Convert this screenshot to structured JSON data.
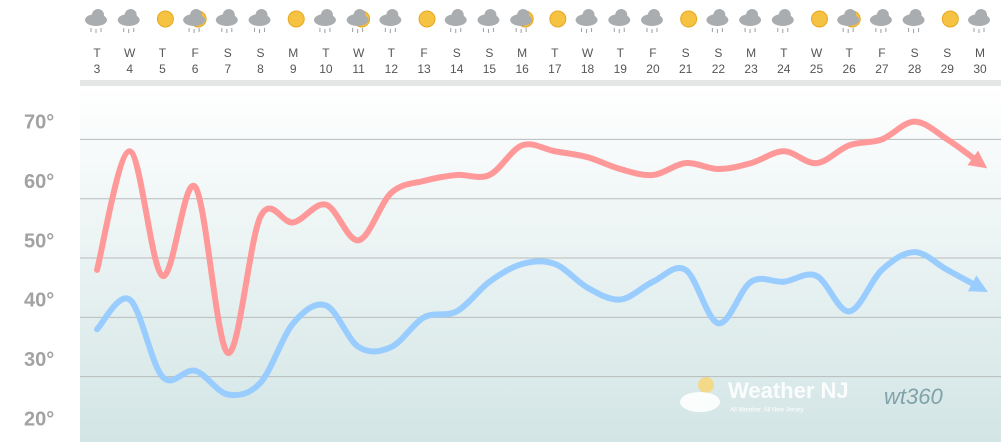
{
  "chart_data": {
    "type": "line",
    "categories": [
      "T",
      "W",
      "T",
      "F",
      "S",
      "S",
      "M",
      "T",
      "W",
      "T",
      "F",
      "S",
      "S",
      "M",
      "T",
      "W",
      "T",
      "F",
      "S",
      "S",
      "M",
      "T",
      "W",
      "T",
      "F",
      "S",
      "S",
      "M"
    ],
    "dates": [
      3,
      4,
      5,
      6,
      7,
      8,
      9,
      10,
      11,
      12,
      13,
      14,
      15,
      16,
      17,
      18,
      19,
      20,
      21,
      22,
      23,
      24,
      25,
      26,
      27,
      28,
      29,
      30
    ],
    "series": [
      {
        "name": "High",
        "color": "#ff9999",
        "values": [
          48,
          68,
          47,
          62,
          34,
          57,
          56,
          59,
          53,
          61,
          63,
          64,
          64,
          69,
          68,
          67,
          65,
          64,
          66,
          65,
          66,
          68,
          66,
          69,
          70,
          73,
          70,
          66
        ]
      },
      {
        "name": "Low",
        "color": "#99ccff",
        "values": [
          38,
          43,
          30,
          31,
          27,
          29,
          39,
          42,
          35,
          35,
          40,
          41,
          46,
          49,
          49,
          45,
          43,
          46,
          48,
          39,
          46,
          46,
          47,
          41,
          48,
          51,
          48,
          45
        ]
      }
    ],
    "ylim": [
      20,
      79
    ],
    "yticks": [
      {
        "value": 20,
        "label": "20°"
      },
      {
        "value": 30,
        "label": "30°"
      },
      {
        "value": 40,
        "label": "40°"
      },
      {
        "value": 50,
        "label": "50°"
      },
      {
        "value": 60,
        "label": "60°"
      },
      {
        "value": 70,
        "label": "70°"
      }
    ],
    "grid": true,
    "annotations": [
      "Weather NJ",
      "All Weather. All New Jersey.",
      "wt360"
    ]
  }
}
